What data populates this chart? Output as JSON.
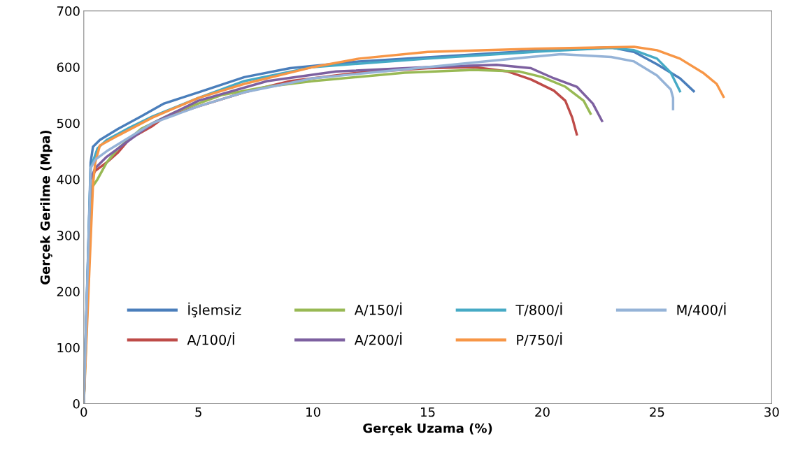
{
  "chart_data": {
    "type": "line",
    "xlabel": "Gerçek Uzama (%)",
    "ylabel": "Gerçek Gerilme (Mpa)",
    "xlim": [
      0,
      30
    ],
    "xticks": [
      0,
      5,
      10,
      15,
      20,
      25,
      30
    ],
    "ylim": [
      0,
      700
    ],
    "yticks": [
      0,
      100,
      200,
      300,
      400,
      500,
      600,
      700
    ],
    "grid": false,
    "legend": "bottom",
    "marker": "none",
    "line_style": "solid",
    "series": [
      {
        "name": "İşlemsiz",
        "color": "#4a7ebb",
        "x": [
          0,
          0.3,
          0.4,
          0.7,
          1.5,
          2.5,
          3.5,
          5,
          7,
          9,
          12,
          16,
          20,
          23,
          24,
          25,
          26,
          26.6
        ],
        "values": [
          0,
          430,
          458,
          470,
          490,
          512,
          535,
          555,
          582,
          598,
          610,
          620,
          630,
          635,
          627,
          605,
          580,
          557
        ]
      },
      {
        "name": "A/100/İ",
        "color": "#be4b48",
        "x": [
          0,
          0.3,
          0.5,
          1,
          1.5,
          2,
          3,
          3.5,
          5,
          7,
          9,
          12,
          15,
          17,
          18.5,
          19.5,
          20.5,
          21,
          21.3,
          21.5
        ],
        "values": [
          0,
          400,
          415,
          430,
          448,
          472,
          495,
          510,
          530,
          555,
          575,
          590,
          598,
          600,
          592,
          578,
          558,
          540,
          510,
          480
        ]
      },
      {
        "name": "A/150/İ",
        "color": "#98b954",
        "x": [
          0,
          0.35,
          0.6,
          1,
          1.5,
          2.5,
          4,
          6,
          8,
          10,
          14,
          17,
          19,
          20,
          21,
          21.8,
          22.1
        ],
        "values": [
          0,
          385,
          400,
          430,
          455,
          490,
          520,
          550,
          565,
          575,
          590,
          595,
          592,
          582,
          565,
          540,
          517
        ]
      },
      {
        "name": "A/200/İ",
        "color": "#7d60a0",
        "x": [
          0,
          0.3,
          0.5,
          1,
          2,
          3,
          5,
          8,
          11,
          15,
          18,
          19.5,
          20.5,
          21.5,
          22.2,
          22.6
        ],
        "values": [
          0,
          400,
          420,
          440,
          470,
          500,
          540,
          575,
          592,
          600,
          604,
          598,
          580,
          565,
          535,
          504
        ]
      },
      {
        "name": "T/800/İ",
        "color": "#46aac5",
        "x": [
          0,
          0.3,
          0.6,
          1,
          2,
          3,
          5,
          7,
          10,
          15,
          20,
          23,
          24,
          25,
          25.6,
          26.0
        ],
        "values": [
          0,
          420,
          455,
          470,
          492,
          512,
          545,
          575,
          600,
          615,
          628,
          634,
          630,
          615,
          590,
          557
        ]
      },
      {
        "name": "P/750/İ",
        "color": "#f79646",
        "x": [
          0,
          0.4,
          0.5,
          0.7,
          1.5,
          3,
          5,
          7,
          10,
          12,
          15,
          20,
          24,
          25,
          26,
          27,
          27.6,
          27.9
        ],
        "values": [
          0,
          390,
          430,
          460,
          478,
          510,
          545,
          570,
          600,
          615,
          627,
          633,
          636,
          630,
          615,
          590,
          570,
          547
        ]
      },
      {
        "name": "M/400/İ",
        "color": "#95b3d7",
        "x": [
          0,
          0.3,
          0.5,
          1,
          2,
          3,
          5,
          7,
          10,
          15,
          18,
          20.8,
          23,
          24,
          25,
          25.6,
          25.7,
          25.7
        ],
        "values": [
          0,
          420,
          435,
          450,
          475,
          500,
          530,
          555,
          580,
          600,
          612,
          623,
          618,
          610,
          585,
          560,
          545,
          525
        ]
      }
    ]
  }
}
